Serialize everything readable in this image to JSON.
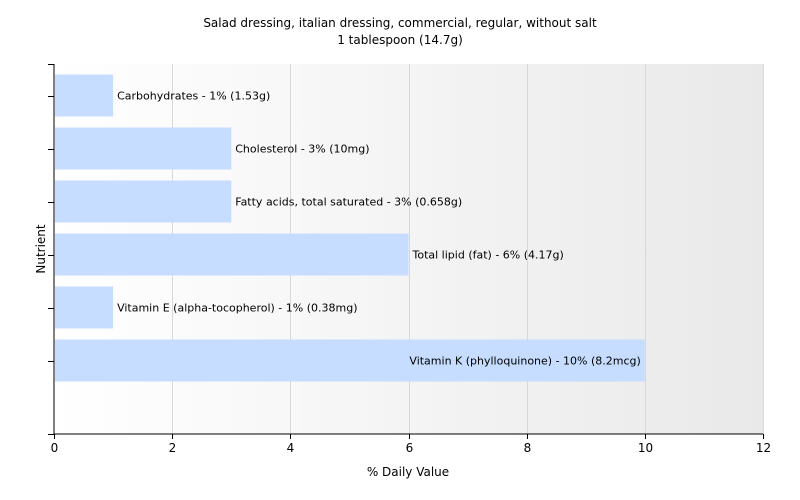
{
  "chart_data": {
    "type": "bar",
    "orientation": "horizontal",
    "title": "Salad dressing, italian dressing, commercial, regular, without salt",
    "subtitle": "1 tablespoon (14.7g)",
    "xlabel": "% Daily Value",
    "ylabel": "Nutrient",
    "xlim": [
      0,
      12
    ],
    "xticks": [
      "0",
      "2",
      "4",
      "6",
      "8",
      "10",
      "12"
    ],
    "grid": true,
    "bar_color": "#c6ddff",
    "categories": [
      "Carbohydrates",
      "Cholesterol",
      "Fatty acids, total saturated",
      "Total lipid (fat)",
      "Vitamin E (alpha-tocopherol)",
      "Vitamin K (phylloquinone)"
    ],
    "values": [
      1,
      3,
      3,
      6,
      1,
      10
    ],
    "data_labels": [
      "Carbohydrates - 1% (1.53g)",
      "Cholesterol - 3% (10mg)",
      "Fatty acids, total saturated - 3% (0.658g)",
      "Total lipid (fat) - 6% (4.17g)",
      "Vitamin E (alpha-tocopherol) - 1% (0.38mg)",
      "Vitamin K (phylloquinone) - 10% (8.2mcg)"
    ]
  }
}
